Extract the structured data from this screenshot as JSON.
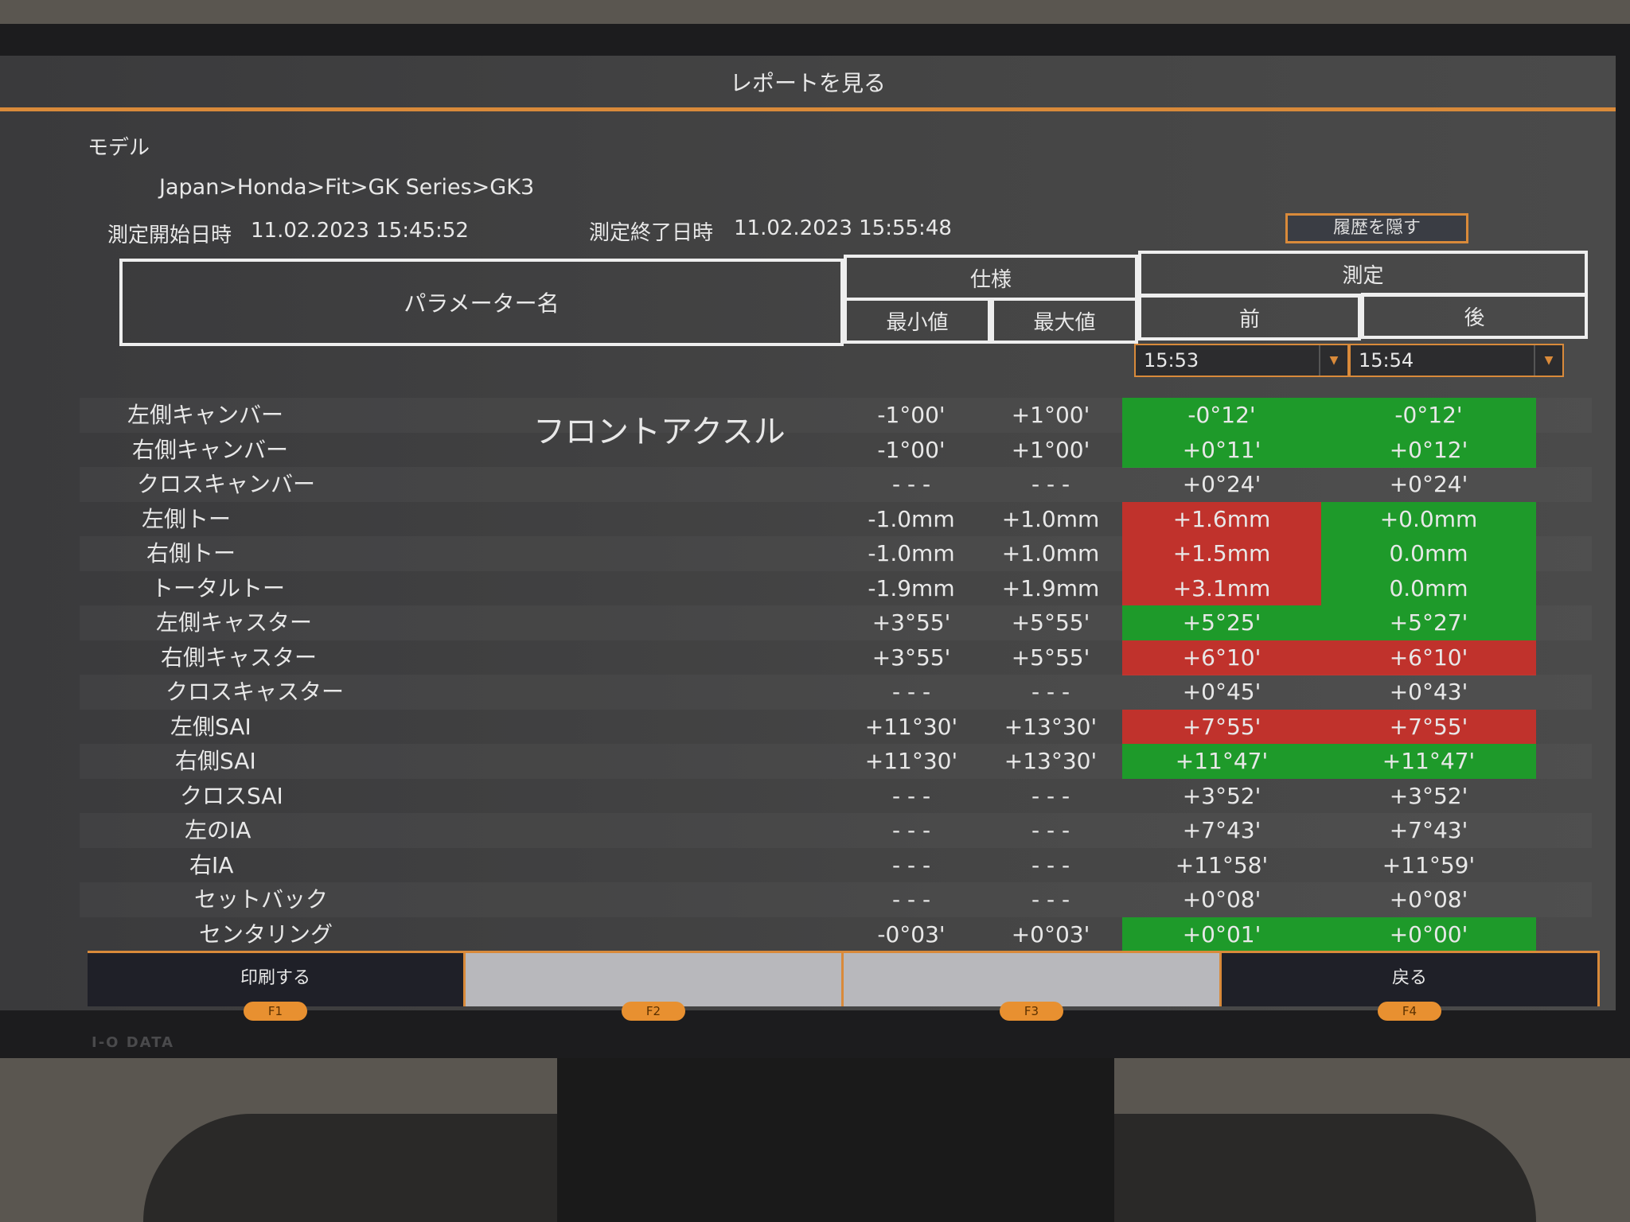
{
  "title": "レポートを見る",
  "model_label": "モデル",
  "model_path": "Japan>Honda>Fit>GK Series>GK3",
  "start_label": "測定開始日時",
  "start_value": "11.02.2023 15:45:52",
  "end_label": "測定終了日時",
  "end_value": "11.02.2023 15:55:48",
  "hide_history": "履歴を隠す",
  "header": {
    "param": "パラメーター名",
    "spec": "仕様",
    "measure": "測定",
    "min": "最小値",
    "max": "最大値",
    "before": "前",
    "after": "後"
  },
  "before_time": "15:53",
  "after_time": "15:54",
  "section": "フロントアクスル",
  "colors": {
    "green": "#1e9a2a",
    "red": "#c0322c",
    "accent": "#d98a3a"
  },
  "rows": [
    {
      "name": "左側キャンバー",
      "min": "-1°00'",
      "max": "+1°00'",
      "before": "-0°12'",
      "before_status": "ok",
      "after": "-0°12'",
      "after_status": "ok"
    },
    {
      "name": "右側キャンバー",
      "min": "-1°00'",
      "max": "+1°00'",
      "before": "+0°11'",
      "before_status": "ok",
      "after": "+0°12'",
      "after_status": "ok"
    },
    {
      "name": "クロスキャンバー",
      "min": "- - -",
      "max": "- - -",
      "before": "+0°24'",
      "before_status": "none",
      "after": "+0°24'",
      "after_status": "none"
    },
    {
      "name": "左側トー",
      "min": "-1.0mm",
      "max": "+1.0mm",
      "before": "+1.6mm",
      "before_status": "ng",
      "after": "+0.0mm",
      "after_status": "ok"
    },
    {
      "name": "右側トー",
      "min": "-1.0mm",
      "max": "+1.0mm",
      "before": "+1.5mm",
      "before_status": "ng",
      "after": "0.0mm",
      "after_status": "ok"
    },
    {
      "name": "トータルトー",
      "min": "-1.9mm",
      "max": "+1.9mm",
      "before": "+3.1mm",
      "before_status": "ng",
      "after": "0.0mm",
      "after_status": "ok"
    },
    {
      "name": "左側キャスター",
      "min": "+3°55'",
      "max": "+5°55'",
      "before": "+5°25'",
      "before_status": "ok",
      "after": "+5°27'",
      "after_status": "ok"
    },
    {
      "name": "右側キャスター",
      "min": "+3°55'",
      "max": "+5°55'",
      "before": "+6°10'",
      "before_status": "ng",
      "after": "+6°10'",
      "after_status": "ng"
    },
    {
      "name": "クロスキャスター",
      "min": "- - -",
      "max": "- - -",
      "before": "+0°45'",
      "before_status": "none",
      "after": "+0°43'",
      "after_status": "none"
    },
    {
      "name": "左側SAI",
      "min": "+11°30'",
      "max": "+13°30'",
      "before": "+7°55'",
      "before_status": "ng",
      "after": "+7°55'",
      "after_status": "ng"
    },
    {
      "name": "右側SAI",
      "min": "+11°30'",
      "max": "+13°30'",
      "before": "+11°47'",
      "before_status": "ok",
      "after": "+11°47'",
      "after_status": "ok"
    },
    {
      "name": "クロスSAI",
      "min": "- - -",
      "max": "- - -",
      "before": "+3°52'",
      "before_status": "none",
      "after": "+3°52'",
      "after_status": "none"
    },
    {
      "name": "左のIA",
      "min": "- - -",
      "max": "- - -",
      "before": "+7°43'",
      "before_status": "none",
      "after": "+7°43'",
      "after_status": "none"
    },
    {
      "name": "右IA",
      "min": "- - -",
      "max": "- - -",
      "before": "+11°58'",
      "before_status": "none",
      "after": "+11°59'",
      "after_status": "none"
    },
    {
      "name": "セットバック",
      "min": "- - -",
      "max": "- - -",
      "before": "+0°08'",
      "before_status": "none",
      "after": "+0°08'",
      "after_status": "none"
    },
    {
      "name": "センタリング",
      "min": "-0°03'",
      "max": "+0°03'",
      "before": "+0°01'",
      "before_status": "ok",
      "after": "+0°00'",
      "after_status": "ok"
    }
  ],
  "footer": [
    {
      "label": "印刷する",
      "key": "F1"
    },
    {
      "label": "",
      "key": "F2"
    },
    {
      "label": "",
      "key": "F3"
    },
    {
      "label": "戻る",
      "key": "F4"
    }
  ],
  "monitor_brand": "I-O DATA"
}
